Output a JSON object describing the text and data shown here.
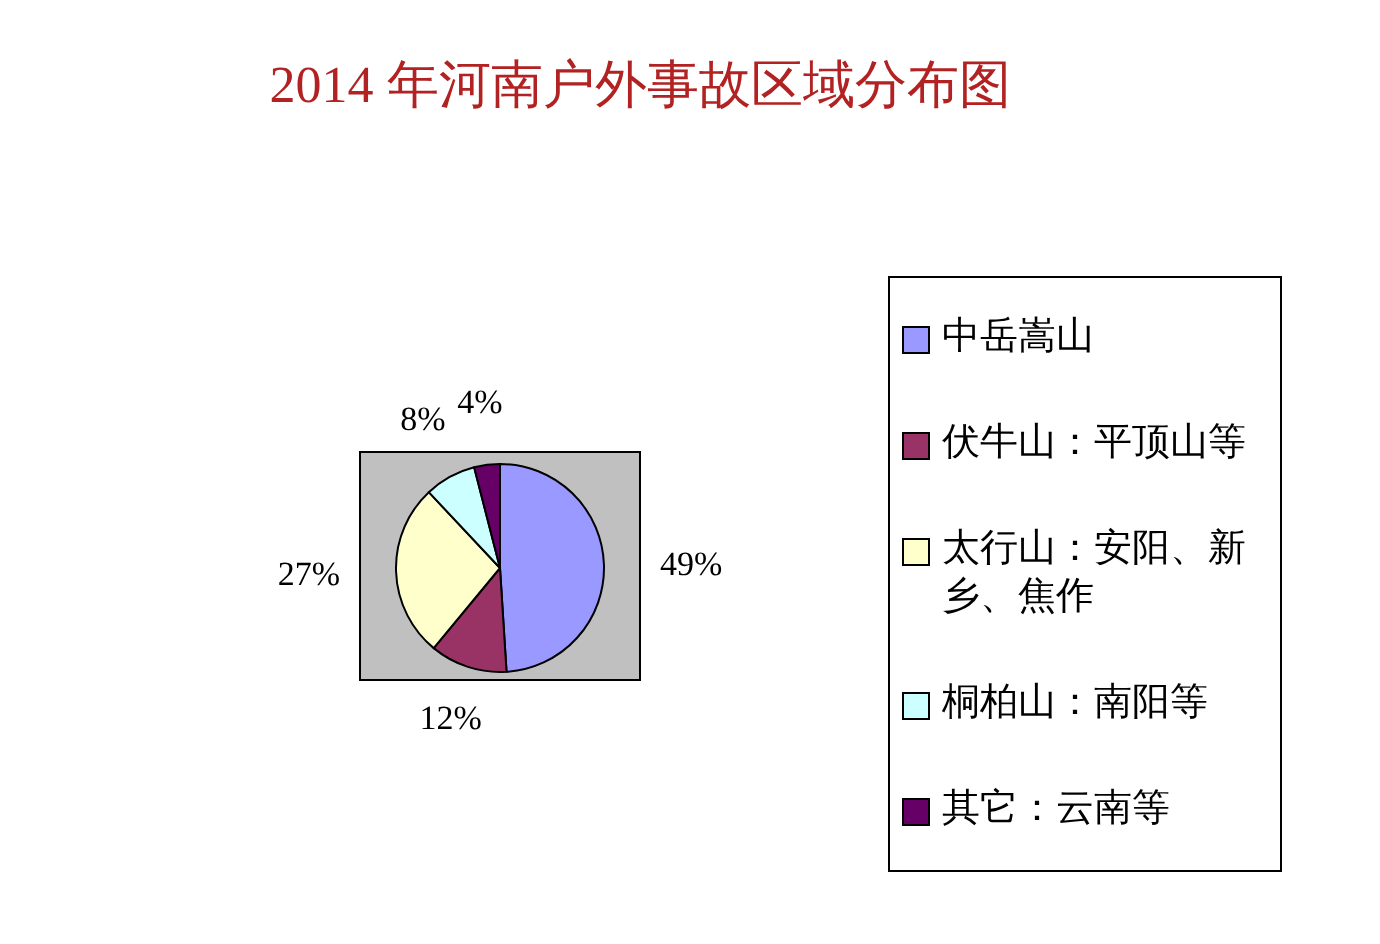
{
  "chart_data": {
    "type": "pie",
    "title": "2014 年河南户外事故区域分布图",
    "categories": [
      "中岳嵩山",
      "伏牛山：平顶山等",
      "太行山：安阳、新乡、焦作",
      "桐柏山：南阳等",
      "其它：云南等"
    ],
    "values": [
      49,
      12,
      27,
      8,
      4
    ],
    "colors": [
      "#9999ff",
      "#993366",
      "#ffffcc",
      "#ccffff",
      "#660066"
    ],
    "value_labels": [
      "49%",
      "12%",
      "27%",
      "8%",
      "4%"
    ],
    "legend": "right"
  }
}
